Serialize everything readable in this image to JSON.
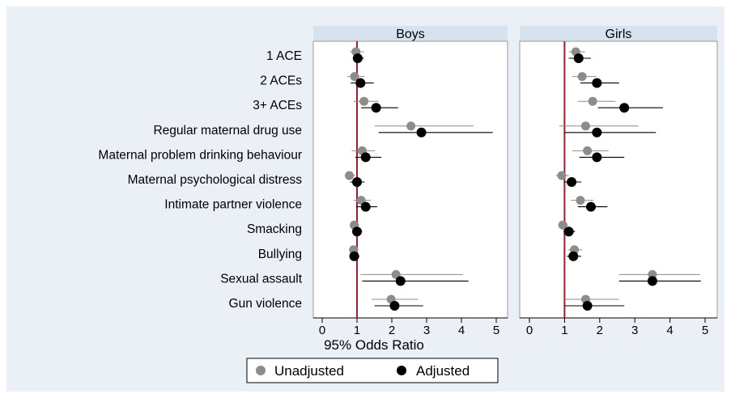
{
  "chart_data": {
    "type": "scatter",
    "subtype": "forest-plot",
    "xlabel": "95% Odds Ratio",
    "xlim": [
      -0.2,
      5.2
    ],
    "xticks": [
      0,
      1,
      2,
      3,
      4,
      5
    ],
    "reference_line": 1,
    "grid": false,
    "legend_position": "bottom-center",
    "colors": {
      "background": "#eaf0f6",
      "panel": "#ffffff",
      "strip": "#d6e3ef",
      "reference": "#a61b2a",
      "unadjusted": "#8c8c8c",
      "adjusted": "#000000"
    },
    "categories": [
      "1 ACE",
      "2 ACEs",
      "3+ ACEs",
      "Regular maternal drug use",
      "Maternal problem drinking behaviour",
      "Maternal psychological distress",
      "Intimate partner violence",
      "Smacking",
      "Bullying",
      "Sexual assault",
      "Gun violence"
    ],
    "legend": [
      {
        "key": "unadjusted",
        "label": "Unadjusted"
      },
      {
        "key": "adjusted",
        "label": "Adjusted"
      }
    ],
    "panels": [
      {
        "title": "Boys",
        "series": {
          "unadjusted": [
            {
              "or": 0.97,
              "lo": 0.8,
              "hi": 1.2
            },
            {
              "or": 0.93,
              "lo": 0.72,
              "hi": 1.22
            },
            {
              "or": 1.2,
              "lo": 0.9,
              "hi": 1.62
            },
            {
              "or": 2.55,
              "lo": 1.5,
              "hi": 4.35
            },
            {
              "or": 1.15,
              "lo": 0.85,
              "hi": 1.52
            },
            {
              "or": 0.78,
              "lo": 0.65,
              "hi": 0.95
            },
            {
              "or": 1.12,
              "lo": 0.9,
              "hi": 1.4
            },
            {
              "or": 0.92,
              "lo": 0.8,
              "hi": 1.07
            },
            {
              "or": 0.9,
              "lo": 0.78,
              "hi": 1.05
            },
            {
              "or": 2.12,
              "lo": 1.1,
              "hi": 4.05
            },
            {
              "or": 1.98,
              "lo": 1.42,
              "hi": 2.75
            }
          ],
          "adjusted": [
            {
              "or": 1.02,
              "lo": 0.88,
              "hi": 1.2
            },
            {
              "or": 1.1,
              "lo": 0.82,
              "hi": 1.48
            },
            {
              "or": 1.55,
              "lo": 1.12,
              "hi": 2.18
            },
            {
              "or": 2.85,
              "lo": 1.62,
              "hi": 4.9
            },
            {
              "or": 1.25,
              "lo": 0.95,
              "hi": 1.7
            },
            {
              "or": 1.0,
              "lo": 0.8,
              "hi": 1.22
            },
            {
              "or": 1.25,
              "lo": 0.97,
              "hi": 1.58
            },
            {
              "or": 1.0,
              "lo": 0.87,
              "hi": 1.15
            },
            {
              "or": 0.92,
              "lo": 0.8,
              "hi": 1.07
            },
            {
              "or": 2.25,
              "lo": 1.15,
              "hi": 4.2
            },
            {
              "or": 2.08,
              "lo": 1.5,
              "hi": 2.9
            }
          ]
        }
      },
      {
        "title": "Girls",
        "series": {
          "unadjusted": [
            {
              "or": 1.32,
              "lo": 1.12,
              "hi": 1.58
            },
            {
              "or": 1.5,
              "lo": 1.22,
              "hi": 1.9
            },
            {
              "or": 1.8,
              "lo": 1.38,
              "hi": 2.45
            },
            {
              "or": 1.6,
              "lo": 0.85,
              "hi": 3.1
            },
            {
              "or": 1.65,
              "lo": 1.22,
              "hi": 2.25
            },
            {
              "or": 0.92,
              "lo": 0.75,
              "hi": 1.12
            },
            {
              "or": 1.45,
              "lo": 1.18,
              "hi": 1.82
            },
            {
              "or": 0.95,
              "lo": 0.82,
              "hi": 1.1
            },
            {
              "or": 1.28,
              "lo": 1.1,
              "hi": 1.5
            },
            {
              "or": 3.5,
              "lo": 2.55,
              "hi": 4.85
            },
            {
              "or": 1.6,
              "lo": 1.0,
              "hi": 2.55
            }
          ],
          "adjusted": [
            {
              "or": 1.4,
              "lo": 1.12,
              "hi": 1.75
            },
            {
              "or": 1.92,
              "lo": 1.45,
              "hi": 2.55
            },
            {
              "or": 2.7,
              "lo": 1.95,
              "hi": 3.8
            },
            {
              "or": 1.92,
              "lo": 1.0,
              "hi": 3.6
            },
            {
              "or": 1.92,
              "lo": 1.42,
              "hi": 2.7
            },
            {
              "or": 1.2,
              "lo": 0.98,
              "hi": 1.48
            },
            {
              "or": 1.75,
              "lo": 1.38,
              "hi": 2.22
            },
            {
              "or": 1.12,
              "lo": 0.97,
              "hi": 1.3
            },
            {
              "or": 1.25,
              "lo": 1.07,
              "hi": 1.47
            },
            {
              "or": 3.5,
              "lo": 2.55,
              "hi": 4.88
            },
            {
              "or": 1.65,
              "lo": 1.0,
              "hi": 2.7
            }
          ]
        }
      }
    ]
  }
}
